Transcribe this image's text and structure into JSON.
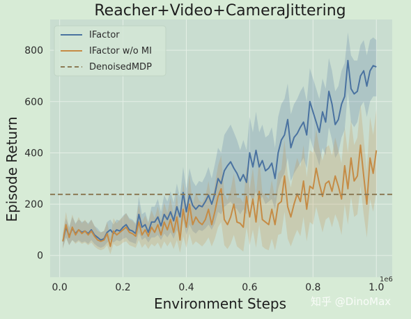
{
  "chart_data": {
    "type": "line",
    "title": "Reacher+Video+CameraJittering",
    "xlabel": "Environment Steps",
    "ylabel": "Episode Return",
    "x_multiplier": "1e6",
    "xlim": [
      -0.03,
      1.05
    ],
    "ylim": [
      -85,
      920
    ],
    "xticks": [
      0.0,
      0.2,
      0.4,
      0.6,
      0.8,
      1.0
    ],
    "xtick_labels": [
      "0.0",
      "0.2",
      "0.4",
      "0.6",
      "0.8",
      "1.0"
    ],
    "yticks": [
      0,
      200,
      400,
      600,
      800
    ],
    "ytick_labels": [
      "0",
      "200",
      "400",
      "600",
      "800"
    ],
    "grid": true,
    "legend_position": "top-left",
    "colors": {
      "background": "#d7ebd6",
      "plot_area": "#c9ddd0",
      "grid": "#e4efe6",
      "ifactor": "#4a72a0",
      "ifactor_wo_mi": "#c58b45",
      "denoised": "#8b7a55"
    },
    "series": [
      {
        "name": "IFactor",
        "color": "#4a72a0",
        "x": [
          0.01,
          0.02,
          0.03,
          0.04,
          0.05,
          0.06,
          0.07,
          0.08,
          0.09,
          0.1,
          0.11,
          0.12,
          0.13,
          0.14,
          0.15,
          0.16,
          0.17,
          0.18,
          0.19,
          0.2,
          0.21,
          0.22,
          0.23,
          0.24,
          0.25,
          0.26,
          0.27,
          0.28,
          0.29,
          0.3,
          0.31,
          0.32,
          0.33,
          0.34,
          0.35,
          0.36,
          0.37,
          0.38,
          0.39,
          0.4,
          0.41,
          0.42,
          0.43,
          0.44,
          0.45,
          0.46,
          0.47,
          0.48,
          0.49,
          0.5,
          0.51,
          0.52,
          0.53,
          0.54,
          0.55,
          0.56,
          0.57,
          0.58,
          0.59,
          0.6,
          0.61,
          0.62,
          0.63,
          0.64,
          0.65,
          0.66,
          0.67,
          0.68,
          0.69,
          0.7,
          0.71,
          0.72,
          0.73,
          0.74,
          0.75,
          0.76,
          0.77,
          0.78,
          0.79,
          0.8,
          0.81,
          0.82,
          0.83,
          0.84,
          0.85,
          0.86,
          0.87,
          0.88,
          0.89,
          0.9,
          0.91,
          0.92,
          0.93,
          0.94,
          0.95,
          0.96,
          0.97,
          0.98,
          0.99,
          1.0
        ],
        "values": [
          55,
          110,
          75,
          105,
          85,
          100,
          90,
          95,
          85,
          100,
          80,
          70,
          60,
          65,
          90,
          100,
          85,
          100,
          95,
          110,
          120,
          100,
          95,
          85,
          160,
          110,
          120,
          90,
          130,
          130,
          150,
          115,
          160,
          140,
          170,
          135,
          190,
          150,
          245,
          170,
          235,
          195,
          180,
          195,
          190,
          210,
          235,
          200,
          240,
          300,
          280,
          330,
          350,
          365,
          340,
          320,
          290,
          315,
          285,
          400,
          345,
          410,
          345,
          370,
          330,
          340,
          360,
          300,
          400,
          450,
          470,
          530,
          420,
          460,
          475,
          500,
          520,
          470,
          600,
          560,
          520,
          480,
          560,
          520,
          640,
          590,
          510,
          530,
          590,
          620,
          760,
          650,
          630,
          640,
          700,
          720,
          660,
          720,
          740,
          735
        ],
        "lower": [
          30,
          70,
          40,
          60,
          50,
          60,
          50,
          55,
          45,
          60,
          45,
          35,
          30,
          35,
          50,
          60,
          50,
          60,
          55,
          65,
          70,
          55,
          50,
          45,
          90,
          60,
          70,
          50,
          70,
          70,
          80,
          60,
          85,
          70,
          90,
          65,
          100,
          75,
          140,
          80,
          120,
          95,
          85,
          100,
          95,
          105,
          120,
          100,
          125,
          170,
          160,
          190,
          200,
          210,
          190,
          180,
          160,
          180,
          160,
          240,
          210,
          250,
          210,
          230,
          200,
          210,
          220,
          180,
          260,
          300,
          320,
          380,
          290,
          320,
          340,
          360,
          380,
          340,
          460,
          420,
          390,
          350,
          420,
          390,
          500,
          450,
          380,
          400,
          460,
          490,
          640,
          520,
          500,
          520,
          580,
          600,
          540,
          600,
          620,
          620
        ],
        "upper": [
          80,
          145,
          110,
          150,
          125,
          140,
          130,
          135,
          125,
          140,
          115,
          105,
          90,
          95,
          130,
          140,
          120,
          140,
          135,
          155,
          165,
          145,
          140,
          125,
          230,
          160,
          170,
          130,
          190,
          190,
          220,
          170,
          235,
          210,
          250,
          205,
          280,
          225,
          345,
          260,
          340,
          290,
          270,
          290,
          285,
          310,
          345,
          300,
          355,
          420,
          400,
          470,
          490,
          510,
          480,
          450,
          410,
          450,
          410,
          540,
          480,
          560,
          480,
          510,
          460,
          470,
          500,
          420,
          540,
          590,
          610,
          670,
          550,
          590,
          610,
          640,
          660,
          600,
          730,
          690,
          650,
          610,
          690,
          650,
          770,
          720,
          640,
          660,
          720,
          750,
          870,
          780,
          760,
          760,
          820,
          840,
          780,
          840,
          850,
          840
        ]
      },
      {
        "name": "IFactor w/o MI",
        "color": "#c58b45",
        "x": [
          0.01,
          0.02,
          0.03,
          0.04,
          0.05,
          0.06,
          0.07,
          0.08,
          0.09,
          0.1,
          0.11,
          0.12,
          0.13,
          0.14,
          0.15,
          0.16,
          0.17,
          0.18,
          0.19,
          0.2,
          0.21,
          0.22,
          0.23,
          0.24,
          0.25,
          0.26,
          0.27,
          0.28,
          0.29,
          0.3,
          0.31,
          0.32,
          0.33,
          0.34,
          0.35,
          0.36,
          0.37,
          0.38,
          0.39,
          0.4,
          0.41,
          0.42,
          0.43,
          0.44,
          0.45,
          0.46,
          0.47,
          0.48,
          0.49,
          0.5,
          0.51,
          0.52,
          0.53,
          0.54,
          0.55,
          0.56,
          0.57,
          0.58,
          0.59,
          0.6,
          0.61,
          0.62,
          0.63,
          0.64,
          0.65,
          0.66,
          0.67,
          0.68,
          0.69,
          0.7,
          0.71,
          0.72,
          0.73,
          0.74,
          0.75,
          0.76,
          0.77,
          0.78,
          0.79,
          0.8,
          0.81,
          0.82,
          0.83,
          0.84,
          0.85,
          0.86,
          0.87,
          0.88,
          0.89,
          0.9,
          0.91,
          0.92,
          0.93,
          0.94,
          0.95,
          0.96,
          0.97,
          0.98,
          0.99,
          1.0
        ],
        "values": [
          55,
          120,
          70,
          110,
          80,
          100,
          85,
          95,
          80,
          95,
          75,
          60,
          55,
          60,
          85,
          35,
          95,
          80,
          90,
          100,
          110,
          90,
          85,
          75,
          130,
          80,
          100,
          75,
          110,
          90,
          120,
          80,
          130,
          100,
          140,
          90,
          150,
          60,
          180,
          110,
          200,
          120,
          150,
          130,
          120,
          140,
          180,
          120,
          170,
          230,
          260,
          140,
          120,
          150,
          200,
          130,
          125,
          110,
          230,
          150,
          220,
          130,
          250,
          140,
          130,
          120,
          180,
          120,
          200,
          210,
          310,
          190,
          150,
          200,
          240,
          210,
          290,
          180,
          270,
          260,
          340,
          280,
          230,
          280,
          290,
          250,
          310,
          270,
          220,
          350,
          260,
          380,
          290,
          310,
          430,
          310,
          200,
          380,
          320,
          410
        ],
        "lower": [
          25,
          70,
          40,
          60,
          45,
          55,
          45,
          50,
          40,
          50,
          35,
          25,
          20,
          25,
          40,
          5,
          45,
          35,
          40,
          50,
          55,
          40,
          35,
          30,
          60,
          30,
          45,
          25,
          45,
          35,
          50,
          25,
          55,
          35,
          55,
          25,
          60,
          10,
          75,
          30,
          85,
          40,
          55,
          45,
          35,
          50,
          70,
          35,
          65,
          110,
          130,
          40,
          25,
          45,
          80,
          35,
          25,
          15,
          110,
          40,
          100,
          30,
          120,
          35,
          25,
          20,
          65,
          20,
          80,
          85,
          170,
          65,
          35,
          70,
          100,
          75,
          150,
          55,
          130,
          120,
          190,
          140,
          90,
          140,
          150,
          110,
          160,
          130,
          80,
          200,
          120,
          230,
          150,
          160,
          270,
          160,
          70,
          220,
          170,
          250
        ],
        "upper": [
          85,
          170,
          105,
          160,
          120,
          150,
          125,
          140,
          120,
          140,
          115,
          95,
          90,
          95,
          130,
          70,
          145,
          125,
          140,
          150,
          165,
          140,
          135,
          120,
          200,
          130,
          155,
          125,
          175,
          145,
          190,
          135,
          205,
          165,
          225,
          155,
          240,
          110,
          285,
          190,
          315,
          200,
          245,
          215,
          205,
          230,
          290,
          205,
          275,
          350,
          390,
          240,
          215,
          255,
          320,
          225,
          225,
          205,
          350,
          260,
          340,
          230,
          380,
          245,
          235,
          220,
          295,
          220,
          320,
          335,
          450,
          315,
          265,
          330,
          380,
          345,
          430,
          305,
          410,
          400,
          490,
          420,
          370,
          420,
          430,
          390,
          460,
          410,
          360,
          500,
          400,
          530,
          430,
          460,
          590,
          460,
          330,
          540,
          470,
          570
        ]
      },
      {
        "name": "DenoisedMDP",
        "color": "#8b7a55",
        "dashed": true,
        "constant": 238
      }
    ]
  },
  "watermark": "知乎 @DinoMax"
}
